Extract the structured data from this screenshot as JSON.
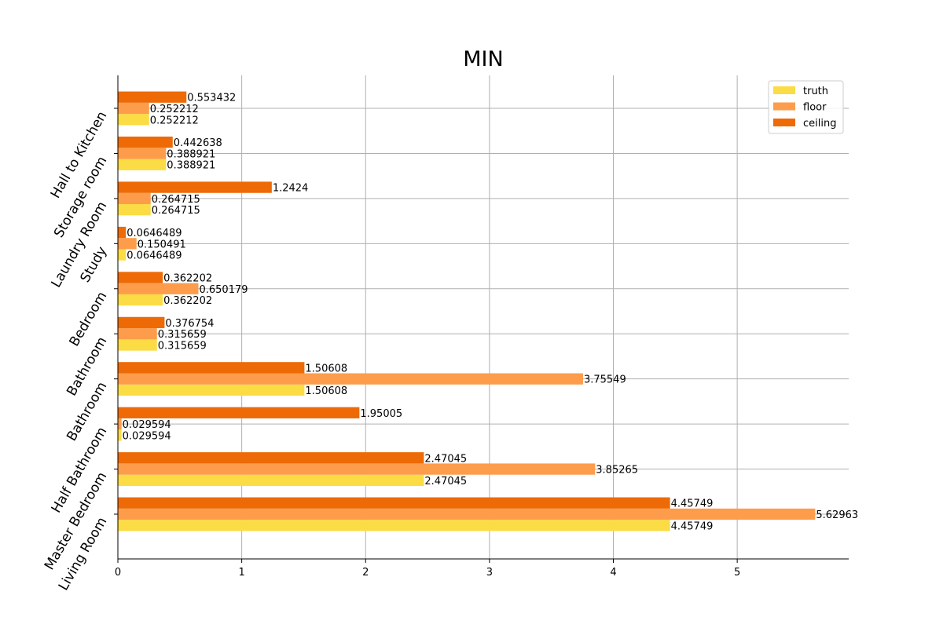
{
  "chart_data": {
    "type": "bar",
    "orientation": "horizontal",
    "title": "MIN",
    "xlabel": "",
    "ylabel": "",
    "xlim": [
      0,
      5.9
    ],
    "xticks": [
      "0",
      "1",
      "2",
      "3",
      "4",
      "5"
    ],
    "grid": true,
    "legend_position": "top-right",
    "categories": [
      "Living Room",
      "Master Bedroom",
      "Half Bathroom",
      "Bathroom",
      "Bathroom",
      "Bedroom",
      "Study",
      "Laundry Room",
      "Storage room",
      "Hall to Kitchen"
    ],
    "series": [
      {
        "name": "truth",
        "color": "#fbdc44",
        "values": [
          4.45749,
          2.47045,
          0.029594,
          1.50608,
          0.315659,
          0.362202,
          0.0646489,
          0.264715,
          0.388921,
          0.252212
        ],
        "labels": [
          "4.45749",
          "2.47045",
          "0.029594",
          "1.50608",
          "0.315659",
          "0.362202",
          "0.0646489",
          "0.264715",
          "0.388921",
          "0.252212"
        ]
      },
      {
        "name": "floor",
        "color": "#fd9d4b",
        "values": [
          5.62963,
          3.85265,
          0.029594,
          3.75549,
          0.315659,
          0.650179,
          0.150491,
          0.264715,
          0.388921,
          0.252212
        ],
        "labels": [
          "5.62963",
          "3.85265",
          "0.029594",
          "3.75549",
          "0.315659",
          "0.650179",
          "0.150491",
          "0.264715",
          "0.388921",
          "0.252212"
        ]
      },
      {
        "name": "ceiling",
        "color": "#ed6a07",
        "values": [
          4.45749,
          2.47045,
          1.95005,
          1.50608,
          0.376754,
          0.362202,
          0.0646489,
          1.2424,
          0.442638,
          0.553432
        ],
        "labels": [
          "4.45749",
          "2.47045",
          "1.95005",
          "1.50608",
          "0.376754",
          "0.362202",
          "0.0646489",
          "1.2424",
          "0.442638",
          "0.553432"
        ]
      }
    ]
  }
}
